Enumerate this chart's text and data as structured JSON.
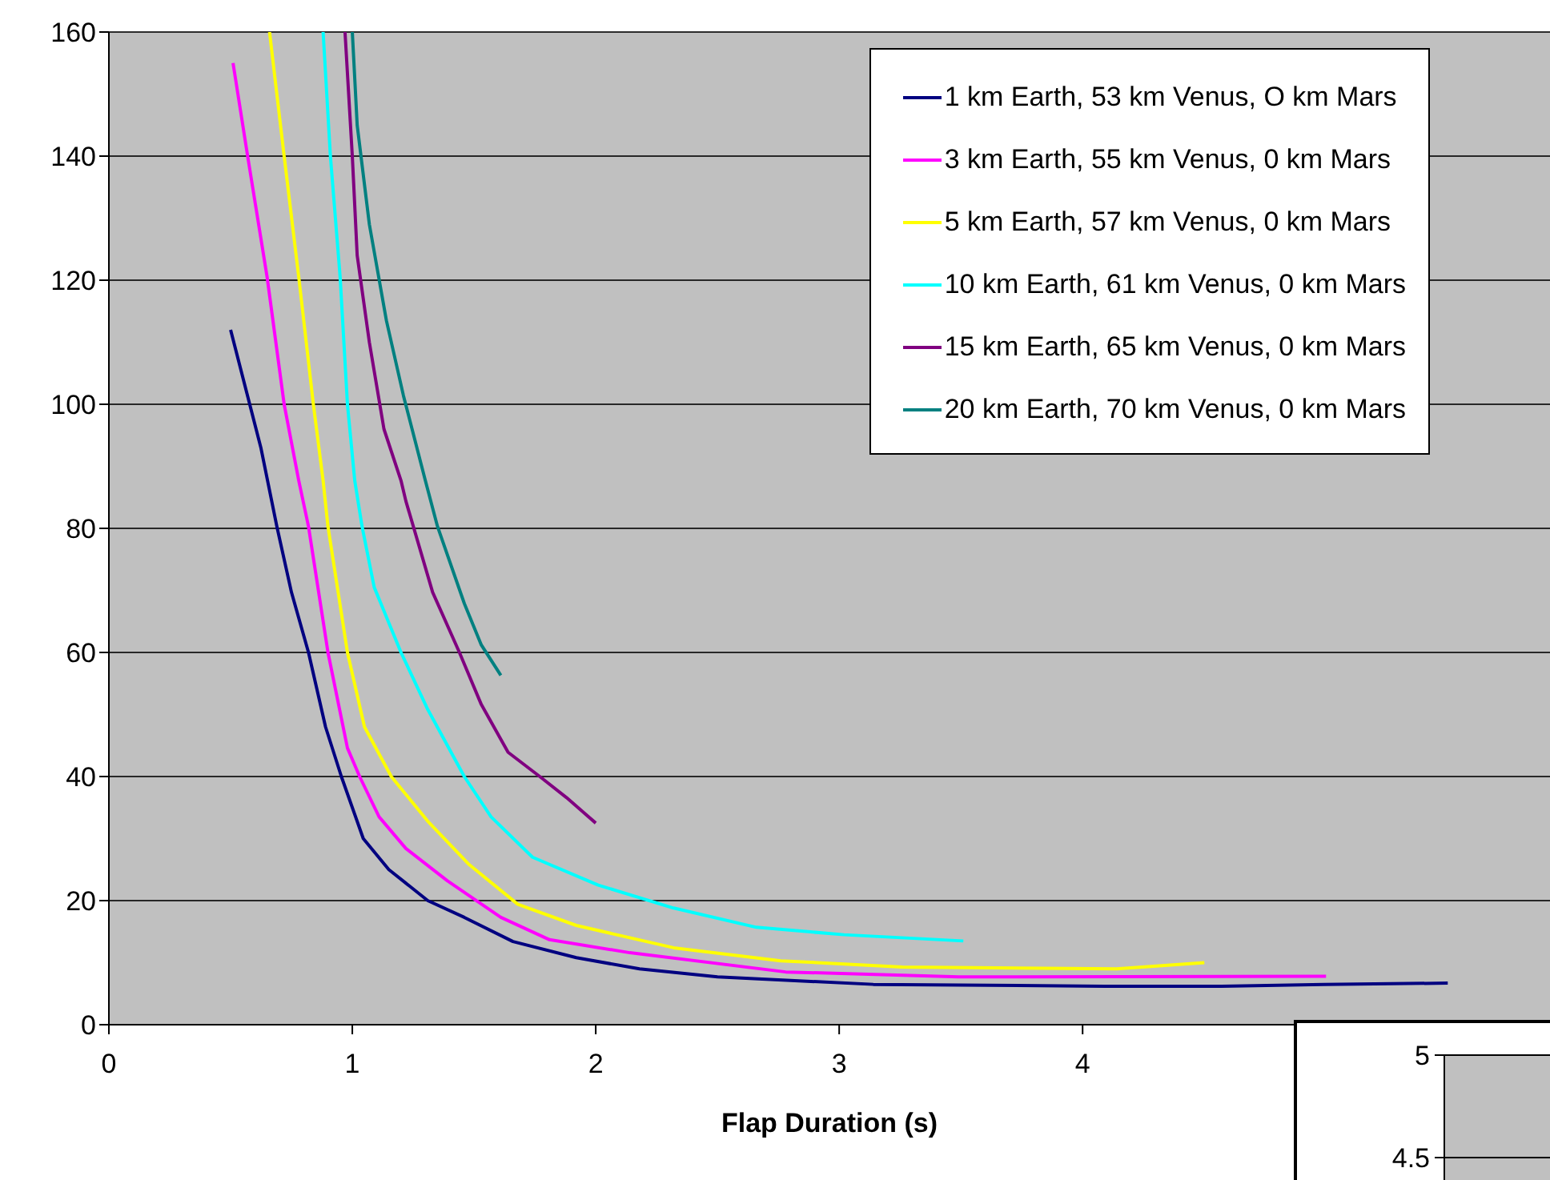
{
  "chart_data": [
    {
      "type": "line",
      "xlabel": "Flap Duration (s)",
      "xlim": [
        0,
        5.92
      ],
      "xticks": [
        0,
        1,
        2,
        3,
        4
      ],
      "ylim": [
        0,
        160
      ],
      "yticks": [
        0,
        20,
        40,
        60,
        80,
        100,
        120,
        140,
        160
      ],
      "grid": "y",
      "legend": "top right",
      "marker": "none",
      "line_style": "solid",
      "series": [
        {
          "name": "1 km Earth, 53 km Venus, O km Mars",
          "color": "#000080",
          "x": [
            0.5,
            0.625,
            0.69,
            0.75,
            0.82,
            0.89,
            0.955,
            1.045,
            1.15,
            1.31,
            1.46,
            1.66,
            1.92,
            2.18,
            2.5,
            3.14,
            4.09,
            4.57,
            4.99,
            5.5
          ],
          "values": [
            112,
            92.9,
            80.3,
            69.7,
            60,
            48,
            40,
            30,
            25,
            20,
            17.3,
            13.4,
            10.8,
            9,
            7.7,
            6.5,
            6.2,
            6.2,
            6.5,
            6.7
          ]
        },
        {
          "name": "3 km Earth, 55 km Venus, 0 km Mars",
          "color": "#ff00ff",
          "x": [
            0.51,
            0.57,
            0.65,
            0.72,
            0.78,
            0.82,
            0.9,
            0.98,
            1.03,
            1.11,
            1.22,
            1.39,
            1.61,
            1.81,
            2.14,
            2.78,
            3.49,
            5.0
          ],
          "values": [
            155,
            140,
            120.5,
            100,
            87.7,
            80.3,
            60,
            44.6,
            40,
            33.5,
            28.4,
            23.2,
            17.3,
            13.7,
            11.6,
            8.5,
            7.7,
            7.8
          ]
        },
        {
          "name": "5 km Earth, 57 km Venus, 0 km Mars",
          "color": "#ffff00",
          "x": [
            0.66,
            0.72,
            0.78,
            0.84,
            0.88,
            0.9,
            0.98,
            1.05,
            1.16,
            1.31,
            1.48,
            1.68,
            1.92,
            2.32,
            2.76,
            3.26,
            4.14,
            4.5
          ],
          "values": [
            160,
            140,
            120.5,
            100,
            87.7,
            80.3,
            60,
            48,
            40,
            32.8,
            25.8,
            19.4,
            16,
            12.4,
            10.3,
            9.3,
            9,
            10
          ]
        },
        {
          "name": "10 km Earth, 61 km Venus, 0 km Mars",
          "color": "#00ffff",
          "x": [
            0.88,
            0.91,
            0.95,
            0.98,
            1.01,
            1.04,
            1.09,
            1.2,
            1.31,
            1.46,
            1.57,
            1.74,
            2.01,
            2.32,
            2.66,
            3.02,
            3.51
          ],
          "values": [
            160,
            140,
            120.5,
            100,
            87.7,
            80.3,
            70.5,
            60,
            50.8,
            40,
            33.5,
            27,
            22.5,
            18.8,
            15.7,
            14.5,
            13.5
          ]
        },
        {
          "name": "15 km Earth, 65 km Venus, 0 km Mars",
          "color": "#800080",
          "x": [
            0.97,
            1.0,
            1.02,
            1.07,
            1.13,
            1.2,
            1.22,
            1.33,
            1.44,
            1.53,
            1.64,
            1.77,
            1.88,
            2.0
          ],
          "values": [
            160,
            140,
            124,
            110,
            96,
            87.7,
            84.4,
            69.7,
            60,
            51.6,
            43.9,
            40,
            36.6,
            32.5
          ]
        },
        {
          "name": "20 km Earth, 70 km Venus, 0 km Mars",
          "color": "#008080",
          "x": [
            1.0,
            1.02,
            1.07,
            1.14,
            1.21,
            1.3,
            1.35,
            1.46,
            1.53,
            1.61
          ],
          "values": [
            160,
            145,
            129,
            113.5,
            101.4,
            87.7,
            80.3,
            67.9,
            61.2,
            56.3
          ]
        }
      ]
    },
    {
      "type": "other",
      "annotations": [
        "5",
        "4.5"
      ]
    }
  ]
}
